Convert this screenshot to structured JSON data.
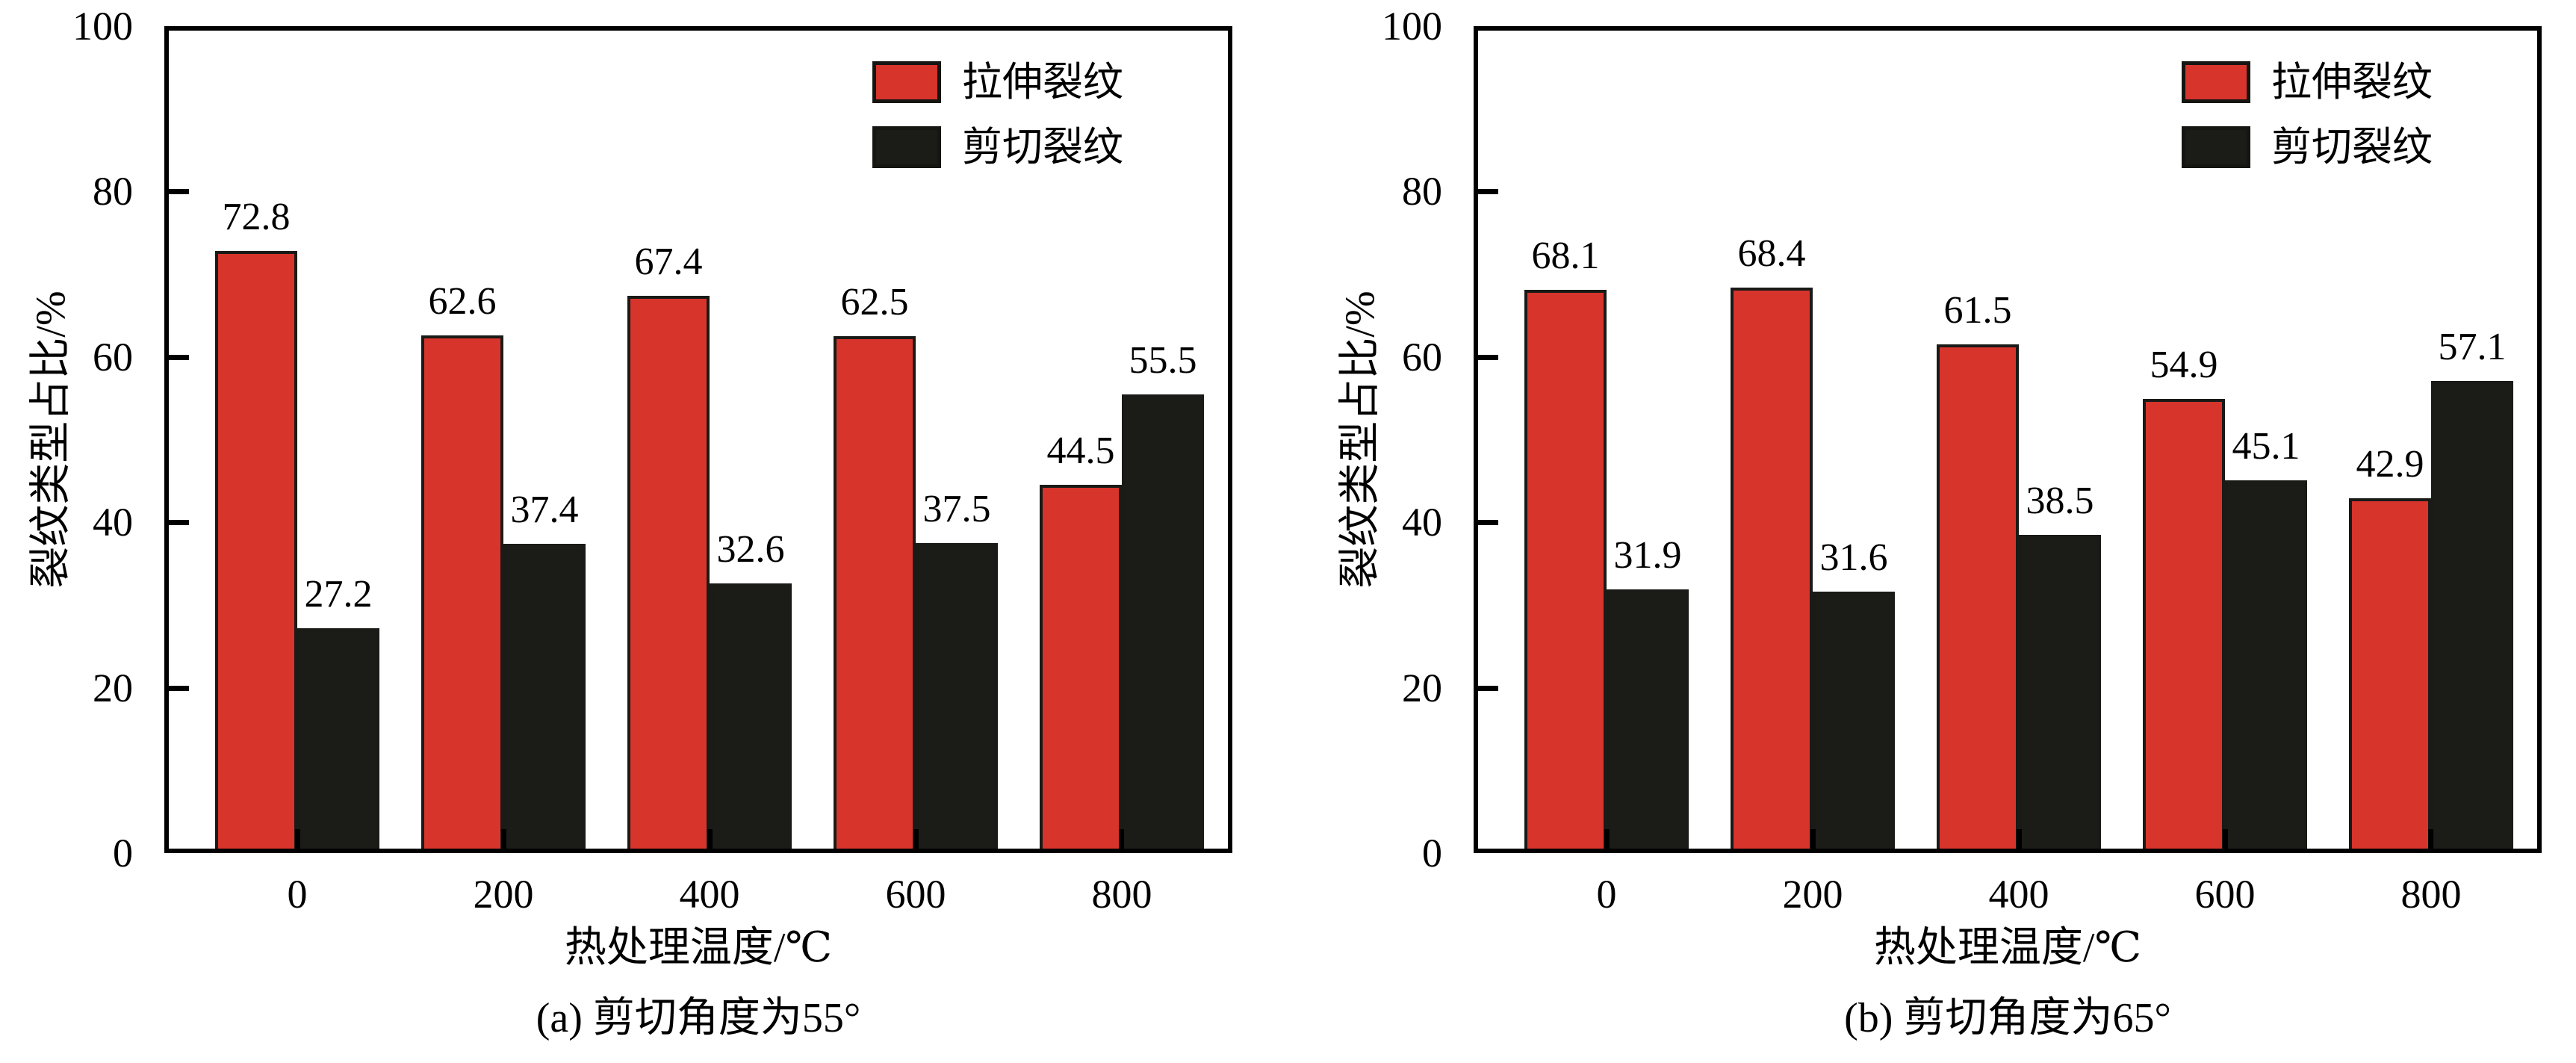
{
  "styles": {
    "background": "#ffffff",
    "axis_color": "#000000",
    "bar_outline": "#1a1a17",
    "tensile_red": "#d7342c",
    "shear_black": "#1b1b18"
  },
  "chart_data": [
    {
      "type": "bar",
      "panel": "a",
      "title": "",
      "caption": "(a) 剪切角度为55°",
      "xlabel": "热处理温度/℃",
      "ylabel": "裂纹类型占比/%",
      "categories": [
        "0",
        "200",
        "400",
        "600",
        "800"
      ],
      "ylim": [
        0,
        100
      ],
      "ytick_step": 20,
      "grid": false,
      "legend_position": "top-right-inside",
      "bar_labels": true,
      "series": [
        {
          "name": "拉伸裂纹",
          "color": "#d7342c",
          "values": [
            72.8,
            62.6,
            67.4,
            62.5,
            44.5
          ]
        },
        {
          "name": "剪切裂纹",
          "color": "#1b1b18",
          "values": [
            27.2,
            37.4,
            32.6,
            37.5,
            55.5
          ]
        }
      ]
    },
    {
      "type": "bar",
      "panel": "b",
      "title": "",
      "caption": "(b) 剪切角度为65°",
      "xlabel": "热处理温度/℃",
      "ylabel": "裂纹类型占比/%",
      "categories": [
        "0",
        "200",
        "400",
        "600",
        "800"
      ],
      "ylim": [
        0,
        100
      ],
      "ytick_step": 20,
      "grid": false,
      "legend_position": "top-right-inside",
      "bar_labels": true,
      "series": [
        {
          "name": "拉伸裂纹",
          "color": "#d7342c",
          "values": [
            68.1,
            68.4,
            61.5,
            54.9,
            42.9
          ]
        },
        {
          "name": "剪切裂纹",
          "color": "#1b1b18",
          "values": [
            31.9,
            31.6,
            38.5,
            45.1,
            57.1
          ]
        }
      ]
    }
  ]
}
